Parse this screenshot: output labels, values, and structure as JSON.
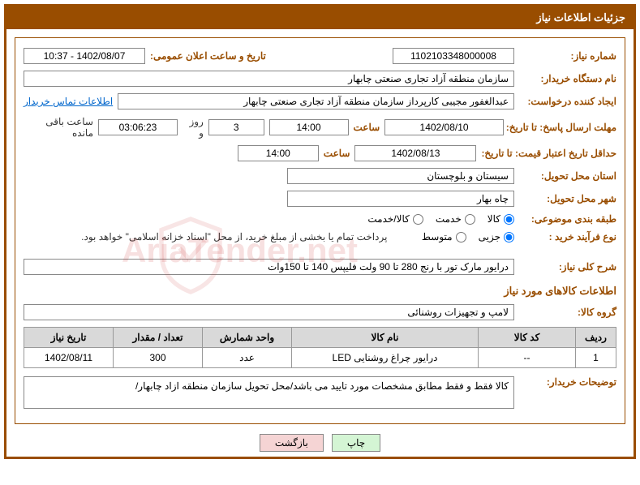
{
  "header": {
    "title": "جزئیات اطلاعات نیاز"
  },
  "fields": {
    "need_no_label": "شماره نیاز:",
    "need_no": "1102103348000008",
    "announce_label": "تاریخ و ساعت اعلان عمومی:",
    "announce_val": "1402/08/07 - 10:37",
    "buyer_org_label": "نام دستگاه خریدار:",
    "buyer_org": "سازمان منطقه آزاد تجاری صنعتی چابهار",
    "requester_label": "ایجاد کننده درخواست:",
    "requester": "عبدالغفور مجیبی کارپرداز سازمان منطقه آزاد تجاری صنعتی چابهار",
    "contact_link": "اطلاعات تماس خریدار",
    "reply_deadline_label": "مهلت ارسال پاسخ: تا تاریخ:",
    "reply_date": "1402/08/10",
    "time_label": "ساعت",
    "reply_time": "14:00",
    "days_val": "3",
    "days_label": "روز و",
    "countdown": "03:06:23",
    "remain_label": "ساعت باقی مانده",
    "validity_label": "حداقل تاریخ اعتبار قیمت: تا تاریخ:",
    "validity_date": "1402/08/13",
    "validity_time": "14:00",
    "province_label": "استان محل تحویل:",
    "province": "سیستان و بلوچستان",
    "city_label": "شهر محل تحویل:",
    "city": "چاه بهار",
    "category_label": "طبقه بندی موضوعی:",
    "cat_goods": "کالا",
    "cat_service": "خدمت",
    "cat_both": "کالا/خدمت",
    "process_label": "نوع فرآیند خرید :",
    "proc_small": "جزیی",
    "proc_med": "متوسط",
    "payment_note": "پرداخت تمام یا بخشی از مبلغ خرید، از محل \"اسناد خزانه اسلامی\" خواهد بود.",
    "desc_label": "شرح کلی نیاز:",
    "desc": "درایور مارک تور با رنج 280 تا 90 ولت فلیپس 140 تا 150وات",
    "goods_info_title": "اطلاعات کالاهای مورد نیاز",
    "group_label": "گروه کالا:",
    "group": "لامپ و تجهیزات روشنائی",
    "buyer_notes_label": "توضیحات خریدار:",
    "buyer_notes": "کالا فقط و فقط مطابق مشخصات مورد تایید می باشد/محل تحویل سازمان  منطقه ازاد چابهار/"
  },
  "table": {
    "headers": {
      "row": "ردیف",
      "code": "کد کالا",
      "name": "نام کالا",
      "unit": "واحد شمارش",
      "qty": "تعداد / مقدار",
      "date": "تاریخ نیاز"
    },
    "rows": [
      {
        "row": "1",
        "code": "--",
        "name": "درایور چراغ روشنایی LED",
        "unit": "عدد",
        "qty": "300",
        "date": "1402/08/11"
      }
    ]
  },
  "buttons": {
    "print": "چاپ",
    "back": "بازگشت"
  },
  "watermark": "AriaTender.net"
}
